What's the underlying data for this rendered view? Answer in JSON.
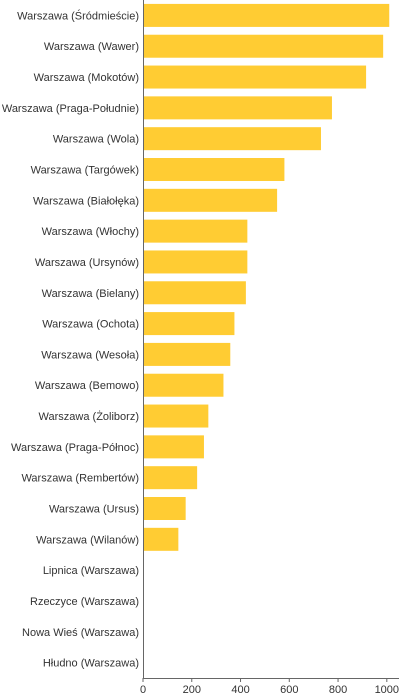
{
  "chart_data": {
    "type": "bar",
    "orientation": "horizontal",
    "bar_color": "#FFCC33",
    "axis_color": "#666666",
    "xlim": [
      0,
      1050
    ],
    "xticks": [
      0,
      200,
      400,
      600,
      800,
      1000
    ],
    "xtick_labels": [
      "0",
      "200",
      "400",
      "600",
      "800",
      "1000"
    ],
    "grid": false,
    "categories": [
      "Warszawa (Śródmieście)",
      "Warszawa (Wawer)",
      "Warszawa (Mokotów)",
      "Warszawa (Praga-Południe)",
      "Warszawa (Wola)",
      "Warszawa (Targówek)",
      "Warszawa (Białołęka)",
      "Warszawa (Włochy)",
      "Warszawa (Ursynów)",
      "Warszawa (Bielany)",
      "Warszawa (Ochota)",
      "Warszawa (Wesoła)",
      "Warszawa (Bemowo)",
      "Warszawa (Żoliborz)",
      "Warszawa (Praga-Północ)",
      "Warszawa (Rembertów)",
      "Warszawa (Ursus)",
      "Warszawa (Wilanów)",
      "Lipnica (Warszawa)",
      "Rzeczyce (Warszawa)",
      "Nowa Wieś (Warszawa)",
      "Hłudno (Warszawa)"
    ],
    "values": [
      1010,
      985,
      915,
      775,
      730,
      580,
      550,
      428,
      428,
      422,
      375,
      358,
      330,
      268,
      250,
      222,
      175,
      145,
      1,
      1,
      1,
      1
    ]
  }
}
